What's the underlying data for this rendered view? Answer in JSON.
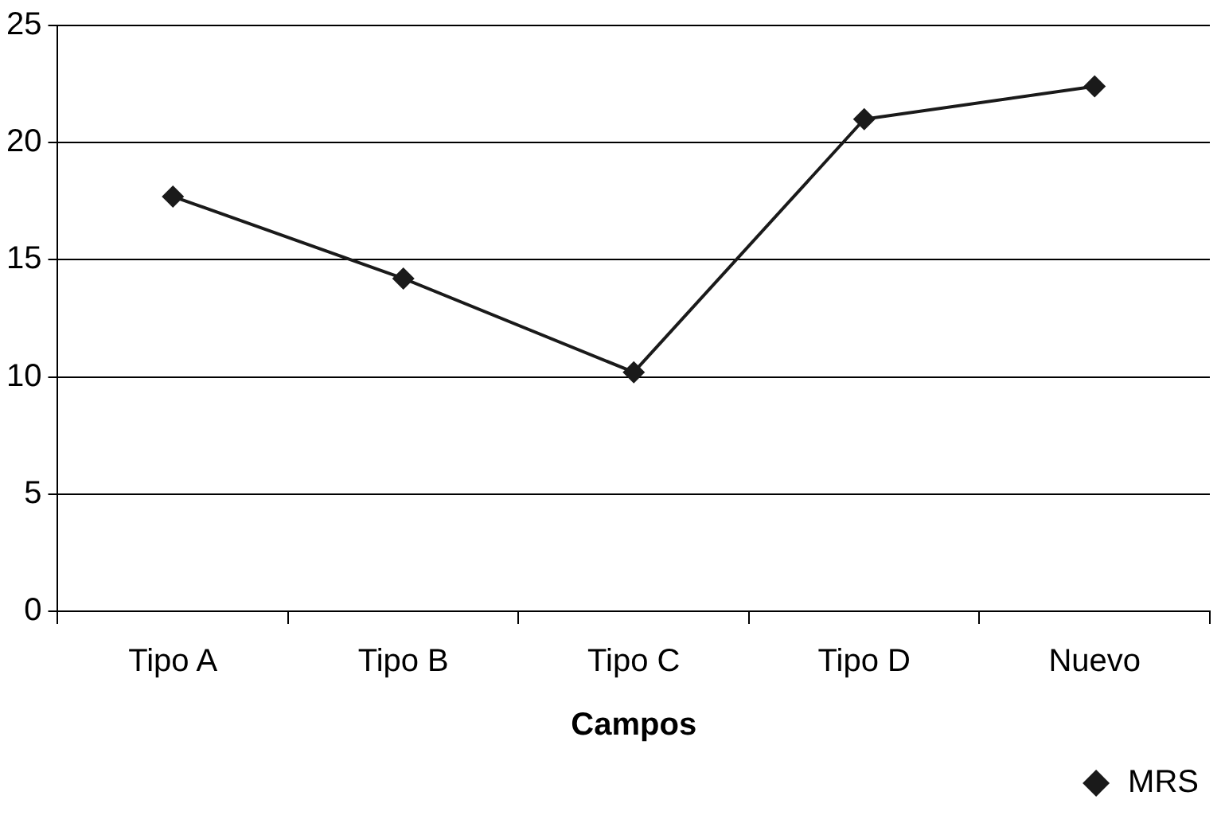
{
  "chart_data": {
    "type": "line",
    "xlabel": "Campos",
    "categories": [
      "Tipo A",
      "Tipo B",
      "Tipo C",
      "Tipo D",
      "Nuevo"
    ],
    "series": [
      {
        "name": "MRS",
        "color": "#1a1a1a",
        "values": [
          17.7,
          14.2,
          10.2,
          21,
          22.4
        ]
      }
    ],
    "ylim": [
      0,
      25
    ],
    "yticks": [
      0,
      5,
      10,
      15,
      20,
      25
    ],
    "grid": "y",
    "legend": "bottom right",
    "marker": "diamond",
    "line_style": "solid"
  }
}
